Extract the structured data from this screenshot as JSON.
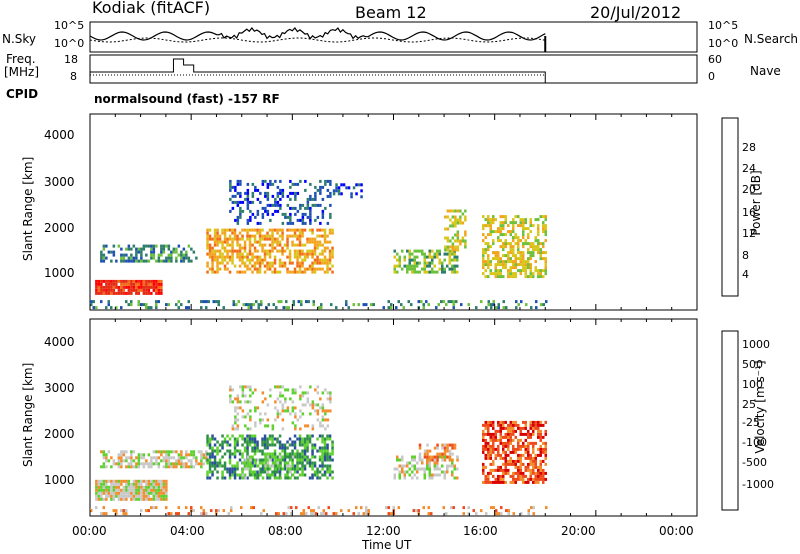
{
  "header": {
    "title": "Kodiak (fitACF)",
    "beam": "Beam 12",
    "date": "20/Jul/2012",
    "cpid_program": "normalsound (fast) -157 RF"
  },
  "side_labels": {
    "nsky": "N.Sky",
    "freq_line1": "Freq.",
    "freq_line2": "[MHz]",
    "cpid": "CPID",
    "nsearch": "N.Search",
    "nave": "Nave"
  },
  "top_axes": {
    "noise_left_ticks": [
      "10^5",
      "10^0"
    ],
    "noise_right_ticks": [
      "10^5",
      "10^0"
    ],
    "freq_left_ticks": [
      "18",
      "8"
    ],
    "nave_right_ticks": [
      "60",
      "0"
    ]
  },
  "x_axis": {
    "label": "Time UT",
    "ticks": [
      "00:00",
      "04:00",
      "08:00",
      "12:00",
      "16:00",
      "20:00",
      "00:00"
    ]
  },
  "colors": {
    "power": [
      "#0000ff",
      "#1e50b4",
      "#2e7d6b",
      "#6dc03c",
      "#d9c61a",
      "#f2a51c",
      "#f36a18",
      "#e52a14",
      "#ff0000"
    ],
    "velocity": [
      "#d80000",
      "#ef4a1a",
      "#f38c2b",
      "#c8c8c8",
      "#5fd12e",
      "#2e8f46",
      "#2a4f9c",
      "#1a2fc8"
    ]
  },
  "chart_data": [
    {
      "type": "heatmap",
      "name_hint": "power",
      "ylabel": "Slant Range [km]",
      "xlabel": "Time UT",
      "xlim": [
        0,
        24
      ],
      "ylim": [
        180,
        4600
      ],
      "y_ticks": [
        "1000",
        "2000",
        "3000",
        "4000"
      ],
      "colorbar_label": "Power [dB]",
      "colorbar_ticks": [
        "4",
        "8",
        "12",
        "16",
        "20",
        "24",
        "28"
      ],
      "blobs": [
        {
          "t0": 0.2,
          "t1": 2.8,
          "r0": 520,
          "r1": 840,
          "lvl": 7,
          "d": 0.95
        },
        {
          "t0": 0.4,
          "t1": 4.2,
          "r0": 1250,
          "r1": 1650,
          "lvl": 2,
          "d": 0.5
        },
        {
          "t0": 4.6,
          "t1": 9.6,
          "r0": 1000,
          "r1": 2000,
          "lvl": 5,
          "d": 0.6
        },
        {
          "t0": 5.5,
          "t1": 9.5,
          "r0": 2100,
          "r1": 3100,
          "lvl": 1,
          "d": 0.35
        },
        {
          "t0": 9.6,
          "t1": 10.8,
          "r0": 2700,
          "r1": 3000,
          "lvl": 1,
          "d": 0.4
        },
        {
          "t0": 12.0,
          "t1": 14.5,
          "r0": 1000,
          "r1": 1500,
          "lvl": 3,
          "d": 0.55
        },
        {
          "t0": 14.0,
          "t1": 14.8,
          "r0": 1500,
          "r1": 2400,
          "lvl": 4,
          "d": 0.5
        },
        {
          "t0": 15.5,
          "t1": 18.0,
          "r0": 900,
          "r1": 2300,
          "lvl": 4,
          "d": 0.55
        },
        {
          "t0": 0.0,
          "t1": 18.0,
          "r0": 200,
          "r1": 400,
          "lvl": 2,
          "d": 0.25
        }
      ]
    },
    {
      "type": "heatmap",
      "name_hint": "velocity",
      "ylabel": "Slant Range [km]",
      "xlabel": "Time UT",
      "xlim": [
        0,
        24
      ],
      "ylim": [
        180,
        4600
      ],
      "y_ticks": [
        "1000",
        "2000",
        "3000",
        "4000"
      ],
      "colorbar_label": "Velocity [m s⁻¹]",
      "colorbar_ticks": [
        "-1000",
        "-500",
        "-100",
        "-25",
        "25",
        "100",
        "500",
        "1000"
      ],
      "blobs": [
        {
          "t0": 0.2,
          "t1": 3.0,
          "r0": 520,
          "r1": 960,
          "lvl": 3,
          "d": 0.95
        },
        {
          "t0": 0.4,
          "t1": 4.6,
          "r0": 1250,
          "r1": 1650,
          "lvl": 3,
          "d": 0.6
        },
        {
          "t0": 4.6,
          "t1": 9.6,
          "r0": 1000,
          "r1": 2000,
          "lvl": 5,
          "d": 0.6
        },
        {
          "t0": 6.0,
          "t1": 8.0,
          "r0": 1000,
          "r1": 1500,
          "lvl": 4,
          "d": 0.5
        },
        {
          "t0": 5.5,
          "t1": 9.5,
          "r0": 2100,
          "r1": 3100,
          "lvl": 3,
          "d": 0.3
        },
        {
          "t0": 12.0,
          "t1": 14.5,
          "r0": 1000,
          "r1": 1500,
          "lvl": 3,
          "d": 0.5
        },
        {
          "t0": 13.0,
          "t1": 14.5,
          "r0": 1400,
          "r1": 1800,
          "lvl": 2,
          "d": 0.5
        },
        {
          "t0": 15.5,
          "t1": 18.0,
          "r0": 900,
          "r1": 2300,
          "lvl": 1,
          "d": 0.65
        },
        {
          "t0": 0.0,
          "t1": 18.0,
          "r0": 200,
          "r1": 400,
          "lvl": 2,
          "d": 0.25
        }
      ]
    }
  ]
}
